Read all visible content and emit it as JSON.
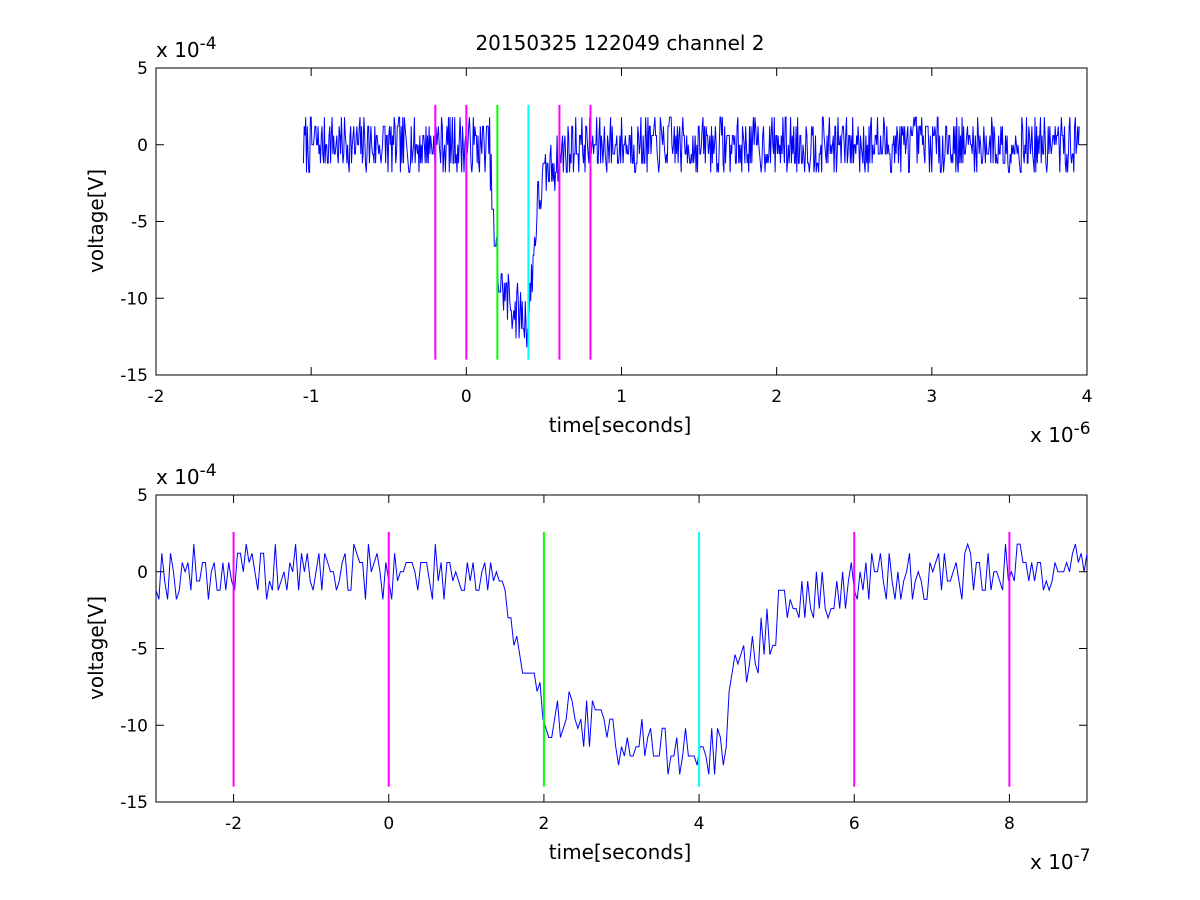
{
  "chart_data": [
    {
      "type": "line",
      "title": "20150325 122049 channel 2",
      "xlabel": "time[seconds]",
      "ylabel": "voltage[V]",
      "x_multiplier": "x 10",
      "x_exponent": "-6",
      "y_multiplier": "x 10",
      "y_exponent": "-4",
      "xlim": [
        -2,
        4
      ],
      "ylim": [
        -15,
        5
      ],
      "x_ticks": [
        "-2",
        "-1",
        "0",
        "1",
        "2",
        "3",
        "4"
      ],
      "y_ticks": [
        "5",
        "0",
        "-5",
        "-10",
        "-15"
      ],
      "grid": false,
      "series": [
        {
          "color": "#0000ff",
          "x_start": -1.05,
          "x_end": 3.95,
          "profile": [
            [
              -1.05,
              0
            ],
            [
              0.15,
              0
            ],
            [
              0.18,
              -6.5
            ],
            [
              0.22,
              -9.3
            ],
            [
              0.27,
              -10.0
            ],
            [
              0.32,
              -10.8
            ],
            [
              0.4,
              -11.5
            ],
            [
              0.43,
              -7.5
            ],
            [
              0.46,
              -4.0
            ],
            [
              0.5,
              -2.3
            ],
            [
              0.55,
              -1.3
            ],
            [
              0.62,
              -0.6
            ],
            [
              0.7,
              0
            ],
            [
              3.95,
              0
            ]
          ],
          "noise": 1.0
        }
      ],
      "markers": [
        {
          "x": -0.2,
          "color": "#ff00ff",
          "ymin": -14,
          "ymax": 2.6
        },
        {
          "x": 0.0,
          "color": "#ff00ff",
          "ymin": -14,
          "ymax": 2.6
        },
        {
          "x": 0.2,
          "color": "#00ff00",
          "ymin": -14,
          "ymax": 2.6
        },
        {
          "x": 0.4,
          "color": "#00ffff",
          "ymin": -14,
          "ymax": 2.6
        },
        {
          "x": 0.6,
          "color": "#ff00ff",
          "ymin": -14,
          "ymax": 2.6
        },
        {
          "x": 0.8,
          "color": "#ff00ff",
          "ymin": -14,
          "ymax": 2.6
        }
      ]
    },
    {
      "type": "line",
      "title": "",
      "xlabel": "time[seconds]",
      "ylabel": "voltage[V]",
      "x_multiplier": "x 10",
      "x_exponent": "-7",
      "y_multiplier": "x 10",
      "y_exponent": "-4",
      "xlim": [
        -3,
        9
      ],
      "ylim": [
        -15,
        5
      ],
      "x_ticks": [
        "-2",
        "0",
        "2",
        "4",
        "6",
        "8"
      ],
      "y_ticks": [
        "5",
        "0",
        "-5",
        "-10",
        "-15"
      ],
      "grid": false,
      "series": [
        {
          "color": "#0000ff",
          "x_start": -3,
          "x_end": 9,
          "profile": [
            [
              -3,
              0
            ],
            [
              1.4,
              0
            ],
            [
              1.55,
              -2.5
            ],
            [
              1.7,
              -6.5
            ],
            [
              1.85,
              -8.0
            ],
            [
              2.0,
              -9.0
            ],
            [
              2.5,
              -9.7
            ],
            [
              3.0,
              -10.8
            ],
            [
              3.5,
              -11.5
            ],
            [
              4.0,
              -11.8
            ],
            [
              4.3,
              -11.5
            ],
            [
              4.4,
              -9.0
            ],
            [
              4.5,
              -6.5
            ],
            [
              4.8,
              -4.5
            ],
            [
              5.0,
              -3.0
            ],
            [
              5.3,
              -2.0
            ],
            [
              5.6,
              -1.5
            ],
            [
              6.0,
              -0.8
            ],
            [
              7.0,
              0
            ],
            [
              9.0,
              0.5
            ]
          ],
          "noise": 1.0
        }
      ],
      "markers": [
        {
          "x": -2,
          "color": "#ff00ff",
          "ymin": -14,
          "ymax": 2.6
        },
        {
          "x": 0,
          "color": "#ff00ff",
          "ymin": -14,
          "ymax": 2.6
        },
        {
          "x": 2,
          "color": "#00ff00",
          "ymin": -14,
          "ymax": 2.6
        },
        {
          "x": 4,
          "color": "#00ffff",
          "ymin": -14,
          "ymax": 2.6
        },
        {
          "x": 6,
          "color": "#ff00ff",
          "ymin": -14,
          "ymax": 2.6
        },
        {
          "x": 8,
          "color": "#ff00ff",
          "ymin": -14,
          "ymax": 2.6
        }
      ]
    }
  ]
}
